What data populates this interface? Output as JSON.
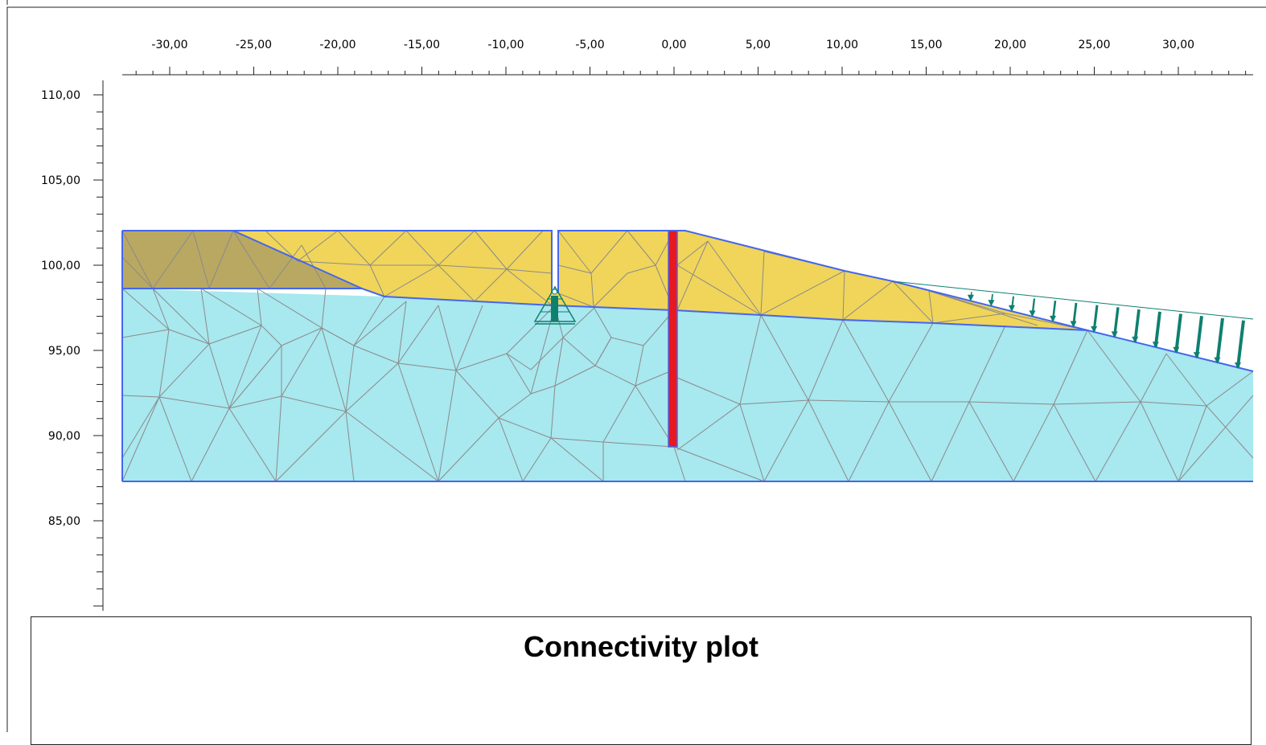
{
  "plot": {
    "title": "Connectivity plot",
    "x_axis": {
      "labels": [
        "-30,00",
        "-25,00",
        "-20,00",
        "-15,00",
        "-10,00",
        "-5,00",
        "0,00",
        "5,00",
        "10,00",
        "15,00",
        "20,00",
        "25,00",
        "30,00"
      ],
      "values": [
        -30,
        -25,
        -20,
        -15,
        -10,
        -5,
        0,
        5,
        10,
        15,
        20,
        25,
        30
      ]
    },
    "y_axis": {
      "labels": [
        "110,00",
        "105,00",
        "100,00",
        "95,00",
        "90,00",
        "85,00"
      ],
      "values": [
        110,
        105,
        100,
        95,
        90,
        85
      ]
    },
    "colors": {
      "upper_soil": "#f0d55a",
      "dark_soil": "#b9a862",
      "lower_soil": "#a8e8ef",
      "boundary": "#4466ee",
      "mesh": "#8a8a8a",
      "wall": "#e8181e",
      "load": "#0e8070"
    },
    "icons": [
      "anchor-support-icon",
      "distributed-load-arrow-icon"
    ]
  }
}
